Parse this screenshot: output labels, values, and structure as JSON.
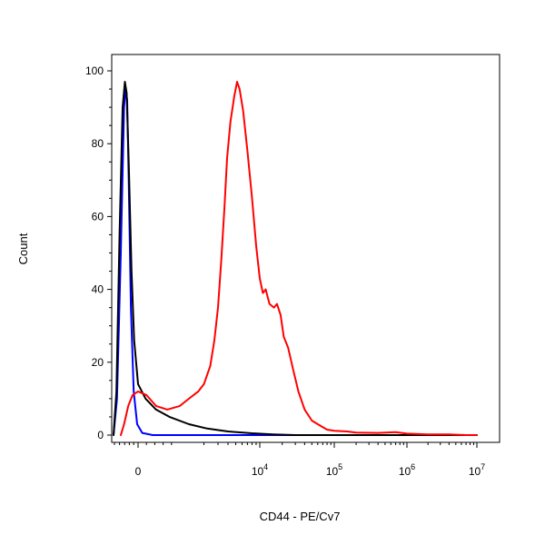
{
  "chart_data": {
    "type": "line",
    "xlabel": "CD44 - PE/Cv7",
    "ylabel": "Count",
    "ylim": [
      0,
      100
    ],
    "x_scale": "biexponential",
    "y_ticks": [
      "0",
      "20",
      "40",
      "60",
      "80",
      "100"
    ],
    "x_ticks": [
      {
        "base": "0",
        "exp": ""
      },
      {
        "base": "10",
        "exp": "4"
      },
      {
        "base": "10",
        "exp": "5"
      },
      {
        "base": "10",
        "exp": "6"
      },
      {
        "base": "10",
        "exp": "7"
      }
    ],
    "grid": false,
    "legend": "none",
    "series": [
      {
        "color": "#0000ff",
        "points": [
          [
            -1100,
            0
          ],
          [
            -900,
            10
          ],
          [
            -750,
            50
          ],
          [
            -620,
            90
          ],
          [
            -560,
            95
          ],
          [
            -500,
            92
          ],
          [
            -430,
            70
          ],
          [
            -330,
            35
          ],
          [
            -200,
            12
          ],
          [
            -40,
            3
          ],
          [
            100,
            0.6
          ],
          [
            350,
            0
          ],
          [
            600,
            0
          ],
          [
            1000000,
            0
          ],
          [
            10000000,
            0
          ]
        ]
      },
      {
        "color": "#000000",
        "points": [
          [
            -1100,
            0
          ],
          [
            -920,
            12
          ],
          [
            -800,
            55
          ],
          [
            -680,
            90
          ],
          [
            -590,
            97
          ],
          [
            -520,
            94
          ],
          [
            -430,
            75
          ],
          [
            -300,
            45
          ],
          [
            -180,
            26
          ],
          [
            0,
            14
          ],
          [
            180,
            10
          ],
          [
            430,
            7
          ],
          [
            750,
            5
          ],
          [
            1300,
            3
          ],
          [
            2200,
            1.8
          ],
          [
            4000,
            1
          ],
          [
            8000,
            0.5
          ],
          [
            15000,
            0.2
          ],
          [
            30000,
            0
          ],
          [
            1000000,
            0
          ],
          [
            10000000,
            0
          ]
        ]
      },
      {
        "color": "#ff0000",
        "points": [
          [
            -750,
            0
          ],
          [
            -620,
            3
          ],
          [
            -450,
            8
          ],
          [
            -250,
            11
          ],
          [
            0,
            12
          ],
          [
            200,
            11
          ],
          [
            430,
            8
          ],
          [
            700,
            7
          ],
          [
            1000,
            8
          ],
          [
            1300,
            10
          ],
          [
            1700,
            12
          ],
          [
            2000,
            14
          ],
          [
            2400,
            19
          ],
          [
            2700,
            26
          ],
          [
            3000,
            35
          ],
          [
            3300,
            48
          ],
          [
            3600,
            62
          ],
          [
            3900,
            76
          ],
          [
            4300,
            86
          ],
          [
            4800,
            93
          ],
          [
            5200,
            97
          ],
          [
            5600,
            95
          ],
          [
            6200,
            89
          ],
          [
            7000,
            78
          ],
          [
            8000,
            65
          ],
          [
            9000,
            52
          ],
          [
            10000,
            43
          ],
          [
            11000,
            39
          ],
          [
            12000,
            40
          ],
          [
            13500,
            36
          ],
          [
            15500,
            35
          ],
          [
            17000,
            36
          ],
          [
            19000,
            33
          ],
          [
            21000,
            27
          ],
          [
            24000,
            24
          ],
          [
            28000,
            18
          ],
          [
            33000,
            12
          ],
          [
            40000,
            7
          ],
          [
            50000,
            4
          ],
          [
            60000,
            3
          ],
          [
            80000,
            1.5
          ],
          [
            100000,
            1.2
          ],
          [
            150000,
            1
          ],
          [
            200000,
            0.7
          ],
          [
            400000,
            0.6
          ],
          [
            700000,
            0.8
          ],
          [
            1000000,
            0.4
          ],
          [
            2000000,
            0.2
          ],
          [
            4000000,
            0.2
          ],
          [
            7000000,
            0
          ],
          [
            10000000,
            0
          ]
        ]
      }
    ]
  }
}
